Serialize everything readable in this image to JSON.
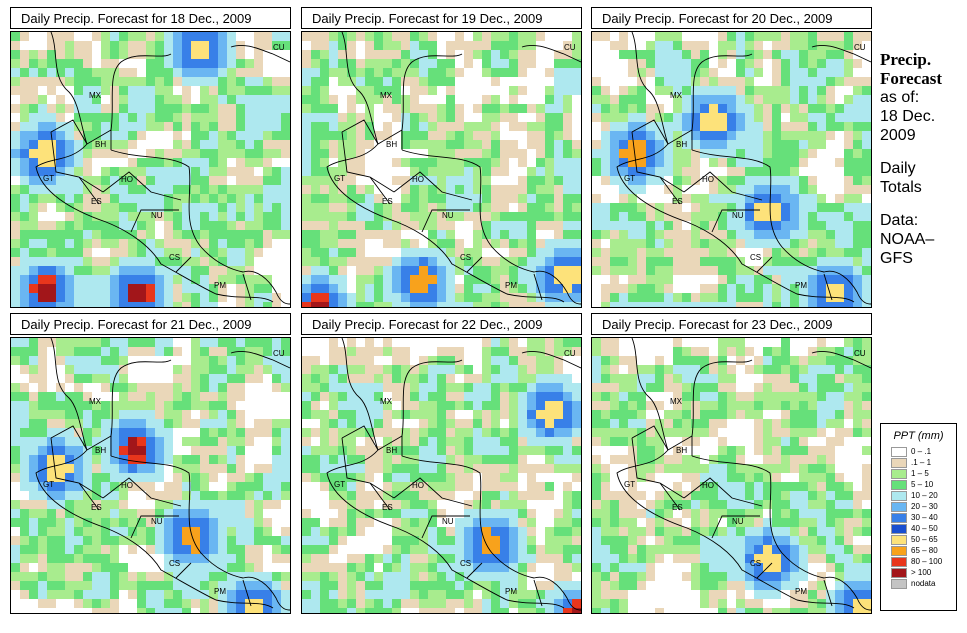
{
  "panels": [
    {
      "title": "Daily Precip. Forecast for  18 Dec., 2009",
      "seed": 11,
      "hot": [
        [
          0.11,
          0.91,
          1.0
        ],
        [
          0.44,
          0.92,
          1.0
        ],
        [
          0.66,
          0.05,
          0.45
        ],
        [
          0.1,
          0.42,
          0.3
        ]
      ]
    },
    {
      "title": "Daily Precip. Forecast for  19 Dec., 2009",
      "seed": 23,
      "hot": [
        [
          0.04,
          0.97,
          0.9
        ],
        [
          0.41,
          0.88,
          0.65
        ],
        [
          0.93,
          0.86,
          0.5
        ]
      ]
    },
    {
      "title": "Daily Precip. Forecast for  20 Dec., 2009",
      "seed": 37,
      "hot": [
        [
          0.14,
          0.42,
          0.65
        ],
        [
          0.62,
          0.63,
          0.55
        ],
        [
          0.42,
          0.3,
          0.4
        ],
        [
          0.85,
          0.92,
          0.4
        ]
      ]
    },
    {
      "title": "Daily Precip. Forecast for  21 Dec., 2009",
      "seed": 41,
      "hot": [
        [
          0.43,
          0.38,
          0.95
        ],
        [
          0.63,
          0.7,
          0.65
        ],
        [
          0.85,
          0.95,
          0.5
        ],
        [
          0.15,
          0.45,
          0.35
        ]
      ]
    },
    {
      "title": "Daily Precip. Forecast for  22 Dec., 2009",
      "seed": 53,
      "hot": [
        [
          0.66,
          0.72,
          0.7
        ],
        [
          0.98,
          0.98,
          0.9
        ],
        [
          0.88,
          0.25,
          0.35
        ]
      ]
    },
    {
      "title": "Daily Precip. Forecast for  23 Dec., 2009",
      "seed": 67,
      "hot": [
        [
          0.62,
          0.78,
          0.6
        ],
        [
          0.95,
          0.95,
          0.45
        ]
      ]
    }
  ],
  "country_labels": [
    {
      "code": "MX"
    },
    {
      "code": "BH"
    },
    {
      "code": "GT"
    },
    {
      "code": "HO"
    },
    {
      "code": "ES"
    },
    {
      "code": "NU"
    },
    {
      "code": "CS"
    },
    {
      "code": "PM"
    },
    {
      "code": "CU"
    }
  ],
  "sidebar": {
    "heading1": "Precip.",
    "heading2": "Forecast",
    "asof": "as of:",
    "date1": "18 Dec.",
    "date2": "2009",
    "daily1": "Daily",
    "daily2": "Totals",
    "data1": "Data:",
    "data2": "NOAA–",
    "data3": "GFS"
  },
  "legend": {
    "title": "PPT (mm)",
    "items": [
      {
        "label": "0 – .1",
        "color": "#ffffff"
      },
      {
        "label": ".1 – 1",
        "color": "#ead7b9"
      },
      {
        "label": "1 – 5",
        "color": "#a8ec8e"
      },
      {
        "label": "5 – 10",
        "color": "#66e07a"
      },
      {
        "label": "10 – 20",
        "color": "#aee8ef"
      },
      {
        "label": "20 – 30",
        "color": "#6ab6f2"
      },
      {
        "label": "30 – 40",
        "color": "#3880e8"
      },
      {
        "label": "40 – 50",
        "color": "#1a4fd0"
      },
      {
        "label": "50 – 65",
        "color": "#fde27a"
      },
      {
        "label": "65 – 80",
        "color": "#f8a21c"
      },
      {
        "label": "80 – 100",
        "color": "#e8361c"
      },
      {
        "label": "> 100",
        "color": "#a2161a"
      },
      {
        "label": "nodata",
        "color": "#c4c4c4"
      }
    ]
  }
}
